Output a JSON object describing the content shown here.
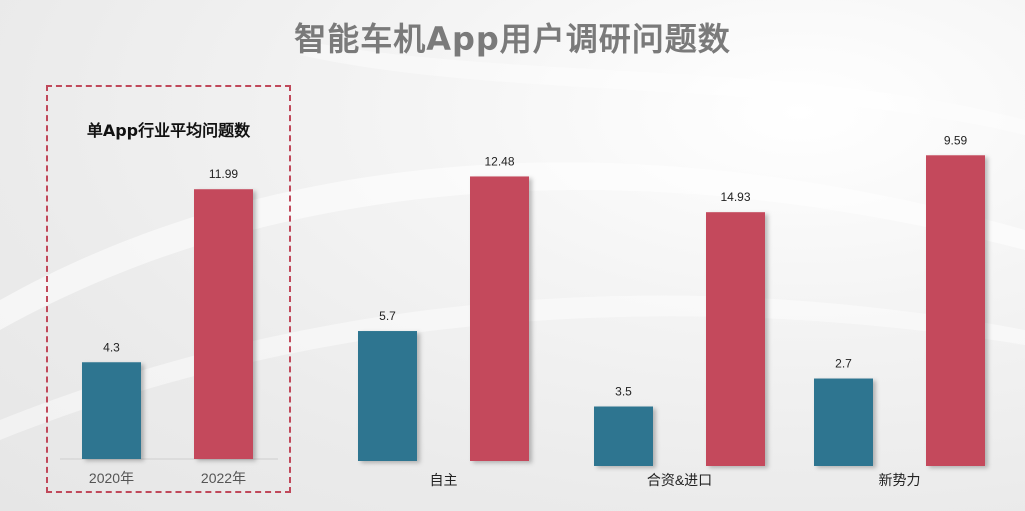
{
  "title": "智能车机App用户调研问题数",
  "colors": {
    "2020": "#2e7590",
    "2022": "#c4495b"
  },
  "chart_data": {
    "type": "bar",
    "title": "智能车机App用户调研问题数",
    "subtitle": "单App行业平均问题数",
    "categories": [
      "",
      "自主",
      "合资&进口",
      "新势力"
    ],
    "series": [
      {
        "name": "2020年",
        "values": [
          4.3,
          5.7,
          3.5,
          2.7
        ]
      },
      {
        "name": "2022年",
        "values": [
          11.99,
          12.48,
          14.93,
          9.59
        ]
      }
    ],
    "year_labels": [
      "2020年",
      "2022年"
    ],
    "value_labels": {
      "2020": [
        "4.3",
        "5.7",
        "3.5",
        "2.7"
      ],
      "2022": [
        "11.99",
        "12.48",
        "14.93",
        "9.59"
      ]
    }
  }
}
